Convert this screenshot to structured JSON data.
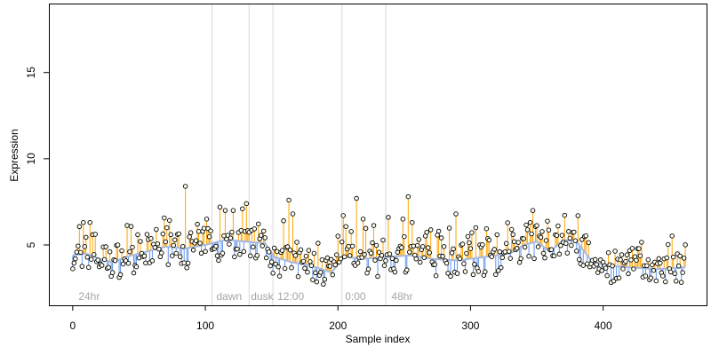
{
  "chart_data": {
    "type": "scatter",
    "title": "",
    "xlabel": "Sample index",
    "ylabel": "Expression",
    "xlim": [
      -18,
      478
    ],
    "ylim": [
      1.5,
      19
    ],
    "x_ticks": [
      0,
      100,
      200,
      300,
      400
    ],
    "y_ticks": [
      5,
      10,
      15
    ],
    "grid": false,
    "legend": "none",
    "segment_boundaries": [
      105,
      133,
      151,
      203,
      236
    ],
    "segment_labels": [
      {
        "label": "24hr",
        "x": 3
      },
      {
        "label": "dawn",
        "x": 107
      },
      {
        "label": "dusk",
        "x": 133
      },
      {
        "label": "12:00",
        "x": 153
      },
      {
        "label": "0:00",
        "x": 204
      },
      {
        "label": "48hr",
        "x": 239
      }
    ],
    "colors": {
      "above_fit": "#ffa500",
      "below_fit": "#6495ed",
      "fit_line": "#a7b9dd",
      "point_fill": "#fffff0",
      "point_edge": "#000000",
      "boundary": "#d9d9d9"
    },
    "fit": [
      {
        "x": 0,
        "y": 4.4
      },
      {
        "x": 10,
        "y": 4.5
      },
      {
        "x": 20,
        "y": 4.2
      },
      {
        "x": 30,
        "y": 4.0
      },
      {
        "x": 40,
        "y": 4.3
      },
      {
        "x": 55,
        "y": 4.6
      },
      {
        "x": 70,
        "y": 4.9
      },
      {
        "x": 85,
        "y": 4.8
      },
      {
        "x": 100,
        "y": 5.0
      },
      {
        "x": 115,
        "y": 5.3
      },
      {
        "x": 130,
        "y": 5.2
      },
      {
        "x": 145,
        "y": 5.1
      },
      {
        "x": 152,
        "y": 4.3
      },
      {
        "x": 165,
        "y": 4.0
      },
      {
        "x": 180,
        "y": 3.8
      },
      {
        "x": 195,
        "y": 3.4
      },
      {
        "x": 205,
        "y": 4.3
      },
      {
        "x": 220,
        "y": 4.2
      },
      {
        "x": 236,
        "y": 4.3
      },
      {
        "x": 255,
        "y": 4.4
      },
      {
        "x": 270,
        "y": 4.2
      },
      {
        "x": 290,
        "y": 4.1
      },
      {
        "x": 310,
        "y": 4.3
      },
      {
        "x": 330,
        "y": 4.5
      },
      {
        "x": 340,
        "y": 5.0
      },
      {
        "x": 350,
        "y": 5.2
      },
      {
        "x": 360,
        "y": 4.6
      },
      {
        "x": 370,
        "y": 5.3
      },
      {
        "x": 380,
        "y": 5.2
      },
      {
        "x": 392,
        "y": 4.0
      },
      {
        "x": 405,
        "y": 3.8
      },
      {
        "x": 420,
        "y": 3.7
      },
      {
        "x": 440,
        "y": 3.6
      },
      {
        "x": 462,
        "y": 3.7
      }
    ],
    "highlights": [
      {
        "x": 8,
        "y": 6.3
      },
      {
        "x": 13,
        "y": 6.3
      },
      {
        "x": 63,
        "y": 5.9
      },
      {
        "x": 71,
        "y": 6.0
      },
      {
        "x": 85,
        "y": 8.4
      },
      {
        "x": 94,
        "y": 6.2
      },
      {
        "x": 101,
        "y": 6.5
      },
      {
        "x": 111,
        "y": 7.2
      },
      {
        "x": 115,
        "y": 7.0
      },
      {
        "x": 121,
        "y": 7.0
      },
      {
        "x": 128,
        "y": 7.1
      },
      {
        "x": 131,
        "y": 7.4
      },
      {
        "x": 159,
        "y": 6.4
      },
      {
        "x": 163,
        "y": 7.6
      },
      {
        "x": 166,
        "y": 6.8
      },
      {
        "x": 185,
        "y": 5.1
      },
      {
        "x": 204,
        "y": 6.7
      },
      {
        "x": 214,
        "y": 7.7
      },
      {
        "x": 219,
        "y": 6.5
      },
      {
        "x": 238,
        "y": 6.6
      },
      {
        "x": 249,
        "y": 6.5
      },
      {
        "x": 253,
        "y": 7.8
      },
      {
        "x": 256,
        "y": 6.3
      },
      {
        "x": 276,
        "y": 5.8
      },
      {
        "x": 289,
        "y": 6.8
      },
      {
        "x": 304,
        "y": 6.0
      },
      {
        "x": 331,
        "y": 5.9
      },
      {
        "x": 345,
        "y": 6.3
      },
      {
        "x": 347,
        "y": 7.0
      },
      {
        "x": 366,
        "y": 6.1
      },
      {
        "x": 422,
        "y": 4.8
      }
    ]
  }
}
